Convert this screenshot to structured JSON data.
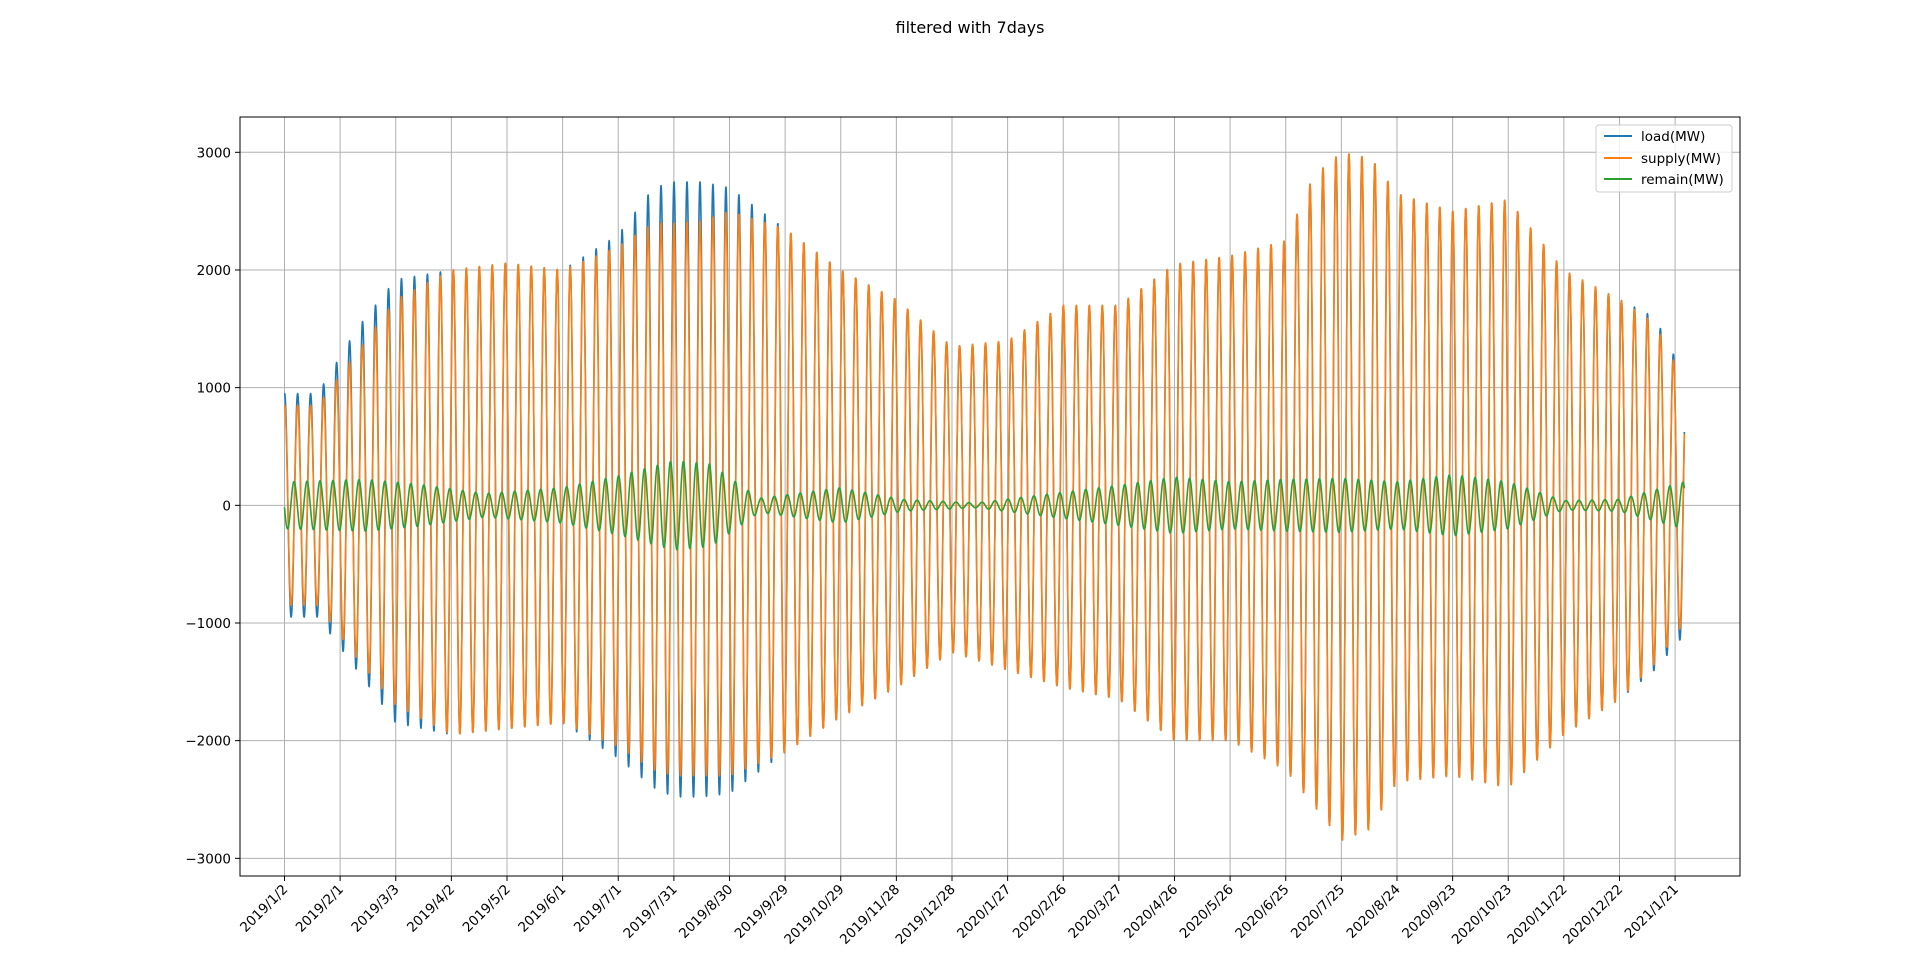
{
  "chart_data": {
    "type": "line",
    "title": "filtered with 7days",
    "xlabel": "",
    "ylabel": "",
    "ylim": [
      -3150,
      3300
    ],
    "yticks": [
      -3000,
      -2000,
      -1000,
      0,
      1000,
      2000,
      3000
    ],
    "ytick_labels": [
      "−3000",
      "−2000",
      "−1000",
      "0",
      "1000",
      "2000",
      "3000"
    ],
    "x_start": "2019-01-02",
    "x_end": "2021-01-26",
    "xlim": [
      "2018-12-09",
      "2021-02-25"
    ],
    "xtick_labels": [
      "2019/1/2",
      "2019/2/1",
      "2019/3/3",
      "2019/4/2",
      "2019/5/2",
      "2019/6/1",
      "2019/7/1",
      "2019/7/31",
      "2019/8/30",
      "2019/9/29",
      "2019/10/29",
      "2019/11/28",
      "2019/12/28",
      "2020/1/27",
      "2020/2/26",
      "2020/3/27",
      "2020/4/26",
      "2020/5/26",
      "2020/6/25",
      "2020/7/25",
      "2020/8/24",
      "2020/9/23",
      "2020/10/23",
      "2020/11/22",
      "2020/12/22",
      "2021/1/21"
    ],
    "grid": true,
    "legend_position": "top-right",
    "oscillation_period_days": 7,
    "series": [
      {
        "name": "load(MW)",
        "color": "#1f77b4",
        "envelope_dates": [
          "2019-01-02",
          "2019-01-20",
          "2019-02-10",
          "2019-03-03",
          "2019-04-02",
          "2019-05-02",
          "2019-06-01",
          "2019-07-01",
          "2019-07-20",
          "2019-07-31",
          "2019-08-15",
          "2019-08-30",
          "2019-09-29",
          "2019-10-29",
          "2019-11-28",
          "2019-12-28",
          "2020-01-27",
          "2020-02-26",
          "2020-03-27",
          "2020-04-26",
          "2020-05-26",
          "2020-06-25",
          "2020-07-10",
          "2020-07-25",
          "2020-08-10",
          "2020-08-24",
          "2020-09-23",
          "2020-10-23",
          "2020-11-22",
          "2020-12-22",
          "2021-01-10",
          "2021-01-26"
        ],
        "upper_envelope": [
          950,
          950,
          1500,
          1920,
          2000,
          2060,
          2000,
          2300,
          2700,
          2750,
          2750,
          2700,
          2350,
          2000,
          1750,
          1350,
          1400,
          1700,
          1700,
          2050,
          2120,
          2250,
          2800,
          3000,
          2950,
          2650,
          2500,
          2600,
          2000,
          1750,
          1600,
          1100
        ],
        "lower_envelope": [
          -950,
          -950,
          -1400,
          -1850,
          -1950,
          -1900,
          -1850,
          -2150,
          -2400,
          -2480,
          -2480,
          -2450,
          -2100,
          -1800,
          -1550,
          -1250,
          -1400,
          -1550,
          -1650,
          -2000,
          -2000,
          -2250,
          -2550,
          -2850,
          -2750,
          -2350,
          -2300,
          -2400,
          -1950,
          -1650,
          -1400,
          -1100
        ]
      },
      {
        "name": "supply(MW)",
        "color": "#ff7f0e",
        "envelope_dates": [
          "2019-01-02",
          "2019-01-20",
          "2019-02-10",
          "2019-03-03",
          "2019-04-02",
          "2019-05-02",
          "2019-06-01",
          "2019-07-01",
          "2019-07-20",
          "2019-07-31",
          "2019-08-15",
          "2019-08-30",
          "2019-09-29",
          "2019-10-29",
          "2019-11-28",
          "2019-12-28",
          "2020-01-27",
          "2020-02-26",
          "2020-03-27",
          "2020-04-26",
          "2020-05-26",
          "2020-06-25",
          "2020-07-10",
          "2020-07-25",
          "2020-08-10",
          "2020-08-24",
          "2020-09-23",
          "2020-10-23",
          "2020-11-22",
          "2020-12-22",
          "2021-01-10",
          "2021-01-26"
        ],
        "upper_envelope": [
          850,
          850,
          1300,
          1750,
          2000,
          2060,
          2000,
          2200,
          2400,
          2400,
          2420,
          2500,
          2350,
          2000,
          1750,
          1350,
          1400,
          1700,
          1700,
          2050,
          2120,
          2250,
          2800,
          3000,
          2950,
          2650,
          2500,
          2600,
          2000,
          1750,
          1550,
          1050
        ],
        "lower_envelope": [
          -850,
          -850,
          -1300,
          -1700,
          -1950,
          -1900,
          -1850,
          -2050,
          -2250,
          -2300,
          -2300,
          -2300,
          -2100,
          -1800,
          -1550,
          -1250,
          -1400,
          -1550,
          -1650,
          -2000,
          -2000,
          -2250,
          -2550,
          -2850,
          -2750,
          -2350,
          -2300,
          -2400,
          -1950,
          -1650,
          -1350,
          -1000
        ]
      },
      {
        "name": "remain(MW)",
        "color": "#2ca02c",
        "envelope_dates": [
          "2019-01-02",
          "2019-02-15",
          "2019-03-15",
          "2019-04-20",
          "2019-06-01",
          "2019-07-01",
          "2019-07-31",
          "2019-08-20",
          "2019-09-15",
          "2019-10-29",
          "2019-12-01",
          "2020-01-10",
          "2020-02-10",
          "2020-03-27",
          "2020-04-26",
          "2020-05-26",
          "2020-06-25",
          "2020-07-25",
          "2020-08-24",
          "2020-09-23",
          "2020-10-23",
          "2020-11-22",
          "2020-12-22",
          "2021-01-26"
        ],
        "upper_envelope": [
          200,
          220,
          180,
          100,
          150,
          250,
          380,
          350,
          60,
          150,
          50,
          20,
          80,
          170,
          240,
          200,
          220,
          230,
          200,
          260,
          200,
          40,
          50,
          200
        ],
        "lower_envelope": [
          -200,
          -220,
          -180,
          -100,
          -150,
          -250,
          -380,
          -350,
          -60,
          -150,
          -50,
          -20,
          -80,
          -170,
          -240,
          -200,
          -220,
          -230,
          -200,
          -260,
          -200,
          -40,
          -50,
          -200
        ]
      }
    ]
  }
}
